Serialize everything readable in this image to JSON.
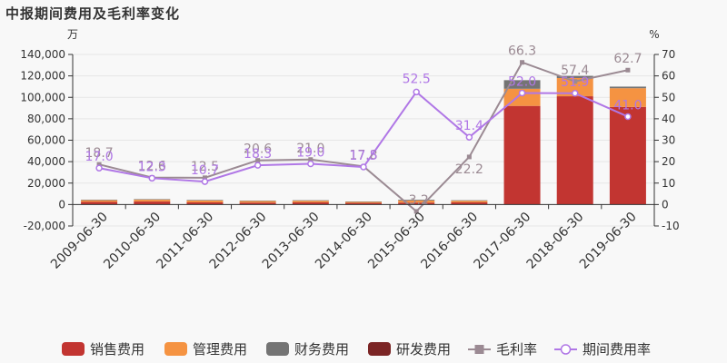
{
  "title": "中报期间费用及毛利率变化",
  "units": {
    "left": "万",
    "right": "%"
  },
  "colors": {
    "sales": "#c23531",
    "admin": "#f59342",
    "finance": "#747474",
    "rd": "#7b2525",
    "gross": "#9b8a93",
    "period": "#b077e6"
  },
  "chart_data": {
    "type": "bar",
    "categories": [
      "2009-06-30",
      "2010-06-30",
      "2011-06-30",
      "2012-06-30",
      "2013-06-30",
      "2014-06-30",
      "2015-06-30",
      "2016-06-30",
      "2017-06-30",
      "2018-06-30",
      "2019-06-30"
    ],
    "y_left": {
      "ylim": [
        -20000,
        140000
      ],
      "ticks": [
        -20000,
        0,
        20000,
        40000,
        60000,
        80000,
        100000,
        120000,
        140000
      ],
      "tick_labels": [
        "-20,000",
        "0",
        "20,000",
        "40,000",
        "60,000",
        "80,000",
        "100,000",
        "120,000",
        "140,000"
      ]
    },
    "y_right": {
      "ylim": [
        -10,
        70
      ],
      "ticks": [
        -10,
        0,
        10,
        20,
        30,
        40,
        50,
        60,
        70
      ],
      "tick_labels": [
        "-10",
        "0",
        "10",
        "20",
        "30",
        "40",
        "50",
        "60",
        "70"
      ]
    },
    "series": [
      {
        "name": "销售费用",
        "type": "bar",
        "axis": "left",
        "values": [
          2500,
          2800,
          2000,
          1800,
          2000,
          1500,
          1800,
          2000,
          92000,
          101000,
          91000
        ]
      },
      {
        "name": "管理费用",
        "type": "bar",
        "axis": "left",
        "values": [
          1500,
          1700,
          1700,
          1500,
          1500,
          1000,
          2000,
          1500,
          16000,
          17000,
          17500
        ]
      },
      {
        "name": "财务费用",
        "type": "bar",
        "axis": "left",
        "values": [
          500,
          500,
          500,
          300,
          500,
          300,
          700,
          500,
          8000,
          2000,
          1500
        ]
      },
      {
        "name": "研发费用",
        "type": "bar",
        "axis": "left",
        "values": [
          0,
          0,
          0,
          0,
          0,
          0,
          0,
          0,
          0,
          0,
          0
        ]
      },
      {
        "name": "毛利率",
        "type": "line",
        "axis": "right",
        "values": [
          18.7,
          12.6,
          12.5,
          20.6,
          21.0,
          17.8,
          -3.2,
          22.2,
          66.3,
          57.4,
          62.7
        ],
        "labels": [
          "18.7",
          "12.6",
          "12.5",
          "20.6",
          "21.0",
          "17.8",
          "-3.2",
          "22.2",
          "66.3",
          "57.4",
          "62.7"
        ]
      },
      {
        "name": "期间费用率",
        "type": "line",
        "axis": "right",
        "values": [
          17.0,
          12.3,
          10.7,
          18.3,
          19.0,
          17.5,
          52.5,
          31.4,
          52.0,
          51.9,
          41.0
        ],
        "labels": [
          "17.0",
          "12.3",
          "10.7",
          "18.3",
          "19.0",
          "17.5",
          "52.5",
          "31.4",
          "52.0",
          "51.9",
          "41.0"
        ]
      }
    ],
    "legend": {
      "position": "bottom",
      "items": [
        "销售费用",
        "管理费用",
        "财务费用",
        "研发费用",
        "毛利率",
        "期间费用率"
      ]
    }
  }
}
